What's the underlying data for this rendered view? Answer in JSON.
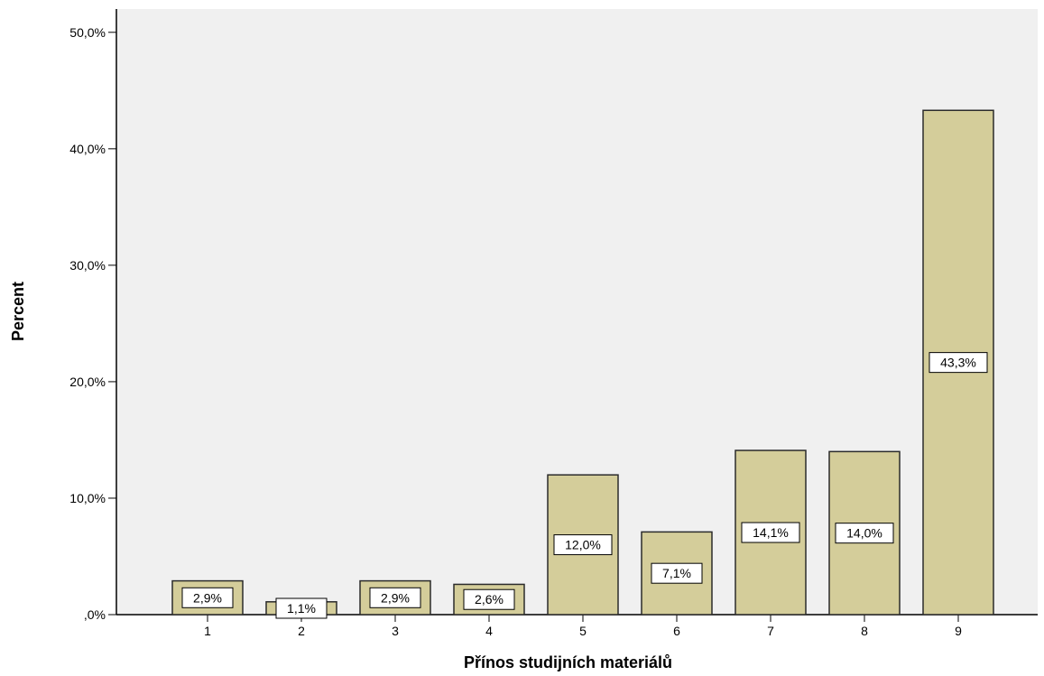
{
  "chart_data": {
    "type": "bar",
    "categories": [
      "1",
      "2",
      "3",
      "4",
      "5",
      "6",
      "7",
      "8",
      "9"
    ],
    "values": [
      2.9,
      1.1,
      2.9,
      2.6,
      12.0,
      7.1,
      14.1,
      14.0,
      43.3
    ],
    "data_labels": [
      "2,9%",
      "1,1%",
      "2,9%",
      "2,6%",
      "12,0%",
      "7,1%",
      "14,1%",
      "14,0%",
      "43,3%"
    ],
    "title": "",
    "xlabel": "Přínos studijních materiálů",
    "ylabel": "Percent",
    "ylim": [
      0,
      52
    ],
    "yticks": [
      0,
      10,
      20,
      30,
      40,
      50
    ],
    "ytick_labels": [
      ",0%",
      "10,0%",
      "20,0%",
      "30,0%",
      "40,0%",
      "50,0%"
    ],
    "grid": false,
    "colors": {
      "plot_background": "#f0f0f0",
      "bar_fill": "#d4cd9a",
      "bar_stroke": "#2b2b2b",
      "label_box_fill": "#ffffff",
      "label_box_stroke": "#000000"
    }
  }
}
